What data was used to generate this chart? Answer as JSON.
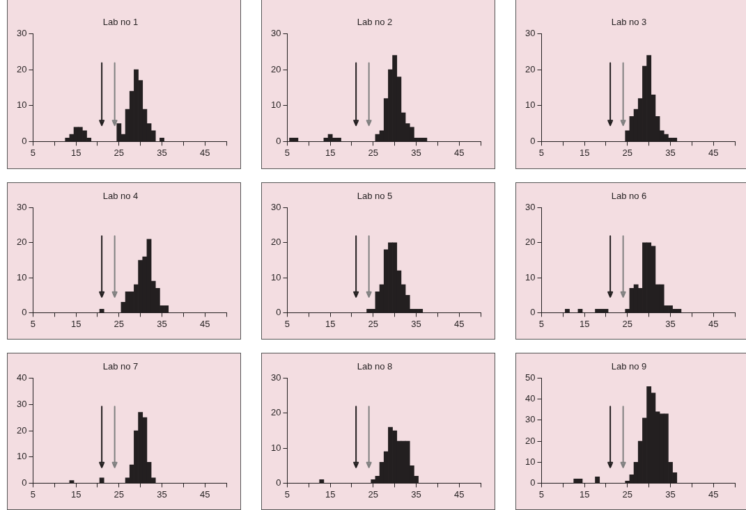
{
  "chart_data": [
    {
      "type": "histogram",
      "title": "Lab no 1",
      "color": "#231f20",
      "bins": [
        5.5,
        6.5,
        7.5,
        8.5,
        9.5,
        10.5,
        11.5,
        12.5,
        13.5,
        14.5,
        15.5,
        16.5,
        17.5,
        18.5,
        19.5,
        20.5,
        21.5,
        22.5,
        23.5,
        24.5,
        25.5,
        26.5,
        27.5,
        28.5,
        29.5,
        30.5,
        31.5,
        32.5,
        33.5,
        34.5,
        35.5,
        36.5,
        37.5,
        38.5
      ],
      "values": [
        0,
        0,
        0,
        0,
        0,
        0,
        0,
        1,
        2,
        4,
        4,
        3,
        1,
        0,
        0,
        0,
        0,
        0,
        0,
        5,
        2,
        9,
        14,
        20,
        17,
        9,
        5,
        3,
        0,
        1,
        0,
        0,
        0
      ],
      "xlim": [
        5,
        50
      ],
      "xticks": [
        5,
        {
          "value": 10,
          "label": null
        },
        15,
        {
          "value": 20,
          "label": null
        },
        25,
        {
          "value": 30,
          "label": null
        },
        35,
        {
          "value": 40,
          "label": null
        },
        45,
        {
          "value": 50,
          "label": null
        }
      ],
      "ylim": [
        0,
        30
      ],
      "yticks": [
        0,
        10,
        20,
        30
      ],
      "ref_lines": [
        {
          "axis": "x",
          "value": 21,
          "color": "#231f20"
        },
        {
          "axis": "x",
          "value": 24,
          "color": "#808080"
        }
      ]
    },
    {
      "type": "histogram",
      "title": "Lab no 2",
      "color": "#231f20",
      "bins": [
        5.5,
        6.5,
        7.5,
        8.5,
        9.5,
        10.5,
        11.5,
        12.5,
        13.5,
        14.5,
        15.5,
        16.5,
        17.5,
        18.5,
        19.5,
        20.5,
        21.5,
        22.5,
        23.5,
        24.5,
        25.5,
        26.5,
        27.5,
        28.5,
        29.5,
        30.5,
        31.5,
        32.5,
        33.5,
        34.5,
        35.5,
        36.5,
        37.5,
        38.5
      ],
      "values": [
        1,
        1,
        0,
        0,
        0,
        0,
        0,
        0,
        1,
        2,
        1,
        1,
        0,
        0,
        0,
        0,
        0,
        0,
        0,
        0,
        2,
        3,
        12,
        20,
        24,
        18,
        8,
        5,
        4,
        1,
        1,
        1,
        0
      ],
      "xlim": [
        5,
        50
      ],
      "xticks": [
        5,
        {
          "value": 10,
          "label": null
        },
        15,
        {
          "value": 20,
          "label": null
        },
        25,
        {
          "value": 30,
          "label": null
        },
        35,
        {
          "value": 40,
          "label": null
        },
        45,
        {
          "value": 50,
          "label": null
        }
      ],
      "ylim": [
        0,
        30
      ],
      "yticks": [
        0,
        10,
        20,
        30
      ],
      "ref_lines": [
        {
          "axis": "x",
          "value": 21,
          "color": "#231f20"
        },
        {
          "axis": "x",
          "value": 24,
          "color": "#808080"
        }
      ]
    },
    {
      "type": "histogram",
      "title": "Lab no 3",
      "color": "#231f20",
      "bins": [
        5.5,
        6.5,
        7.5,
        8.5,
        9.5,
        10.5,
        11.5,
        12.5,
        13.5,
        14.5,
        15.5,
        16.5,
        17.5,
        18.5,
        19.5,
        20.5,
        21.5,
        22.5,
        23.5,
        24.5,
        25.5,
        26.5,
        27.5,
        28.5,
        29.5,
        30.5,
        31.5,
        32.5,
        33.5,
        34.5,
        35.5,
        36.5,
        37.5,
        38.5
      ],
      "values": [
        0,
        0,
        0,
        0,
        0,
        0,
        0,
        0,
        0,
        0,
        0,
        0,
        0,
        0,
        0,
        0,
        0,
        0,
        0,
        3,
        7,
        9,
        12,
        21,
        24,
        13,
        7,
        3,
        2,
        1,
        1,
        0,
        0
      ],
      "xlim": [
        5,
        50
      ],
      "xticks": [
        5,
        {
          "value": 10,
          "label": null
        },
        15,
        {
          "value": 20,
          "label": null
        },
        25,
        {
          "value": 30,
          "label": null
        },
        35,
        {
          "value": 40,
          "label": null
        },
        45,
        {
          "value": 50,
          "label": null
        }
      ],
      "ylim": [
        0,
        30
      ],
      "yticks": [
        0,
        10,
        20,
        30
      ],
      "ref_lines": [
        {
          "axis": "x",
          "value": 21,
          "color": "#231f20"
        },
        {
          "axis": "x",
          "value": 24,
          "color": "#808080"
        }
      ]
    },
    {
      "type": "histogram",
      "title": "Lab no 4",
      "color": "#231f20",
      "bins": [
        5.5,
        6.5,
        7.5,
        8.5,
        9.5,
        10.5,
        11.5,
        12.5,
        13.5,
        14.5,
        15.5,
        16.5,
        17.5,
        18.5,
        19.5,
        20.5,
        21.5,
        22.5,
        23.5,
        24.5,
        25.5,
        26.5,
        27.5,
        28.5,
        29.5,
        30.5,
        31.5,
        32.5,
        33.5,
        34.5,
        35.5,
        36.5,
        37.5,
        38.5
      ],
      "values": [
        0,
        0,
        0,
        0,
        0,
        0,
        0,
        0,
        0,
        0,
        0,
        0,
        0,
        0,
        0,
        1,
        0,
        0,
        0,
        0,
        3,
        6,
        6,
        8,
        15,
        16,
        21,
        9,
        7,
        2,
        2,
        0,
        0
      ],
      "xlim": [
        5,
        50
      ],
      "xticks": [
        5,
        {
          "value": 10,
          "label": null
        },
        15,
        {
          "value": 20,
          "label": null
        },
        25,
        {
          "value": 30,
          "label": null
        },
        35,
        {
          "value": 40,
          "label": null
        },
        45,
        {
          "value": 50,
          "label": null
        }
      ],
      "ylim": [
        0,
        30
      ],
      "yticks": [
        0,
        10,
        20,
        30
      ],
      "ref_lines": [
        {
          "axis": "x",
          "value": 21,
          "color": "#231f20"
        },
        {
          "axis": "x",
          "value": 24,
          "color": "#808080"
        }
      ]
    },
    {
      "type": "histogram",
      "title": "Lab no 5",
      "color": "#231f20",
      "bins": [
        5.5,
        6.5,
        7.5,
        8.5,
        9.5,
        10.5,
        11.5,
        12.5,
        13.5,
        14.5,
        15.5,
        16.5,
        17.5,
        18.5,
        19.5,
        20.5,
        21.5,
        22.5,
        23.5,
        24.5,
        25.5,
        26.5,
        27.5,
        28.5,
        29.5,
        30.5,
        31.5,
        32.5,
        33.5,
        34.5,
        35.5,
        36.5,
        37.5,
        38.5
      ],
      "values": [
        0,
        0,
        0,
        0,
        0,
        0,
        0,
        0,
        0,
        0,
        0,
        0,
        0,
        0,
        0,
        0,
        0,
        0,
        1,
        1,
        6,
        8,
        18,
        20,
        20,
        12,
        8,
        5,
        1,
        1,
        1,
        0,
        0
      ],
      "xlim": [
        5,
        50
      ],
      "xticks": [
        5,
        {
          "value": 10,
          "label": null
        },
        15,
        {
          "value": 20,
          "label": null
        },
        25,
        {
          "value": 30,
          "label": null
        },
        35,
        {
          "value": 40,
          "label": null
        },
        45,
        {
          "value": 50,
          "label": null
        }
      ],
      "ylim": [
        0,
        30
      ],
      "yticks": [
        0,
        10,
        20,
        30
      ],
      "ref_lines": [
        {
          "axis": "x",
          "value": 21,
          "color": "#231f20"
        },
        {
          "axis": "x",
          "value": 24,
          "color": "#808080"
        }
      ]
    },
    {
      "type": "histogram",
      "title": "Lab no 6",
      "color": "#231f20",
      "bins": [
        5.5,
        6.5,
        7.5,
        8.5,
        9.5,
        10.5,
        11.5,
        12.5,
        13.5,
        14.5,
        15.5,
        16.5,
        17.5,
        18.5,
        19.5,
        20.5,
        21.5,
        22.5,
        23.5,
        24.5,
        25.5,
        26.5,
        27.5,
        28.5,
        29.5,
        30.5,
        31.5,
        32.5,
        33.5,
        34.5,
        35.5,
        36.5,
        37.5,
        38.5
      ],
      "values": [
        0,
        0,
        0,
        0,
        0,
        1,
        0,
        0,
        1,
        0,
        0,
        0,
        1,
        1,
        1,
        0,
        0,
        0,
        0,
        1,
        7,
        8,
        7,
        20,
        20,
        19,
        8,
        8,
        2,
        2,
        1,
        1,
        0
      ],
      "xlim": [
        5,
        50
      ],
      "xticks": [
        5,
        {
          "value": 10,
          "label": null
        },
        15,
        {
          "value": 20,
          "label": null
        },
        25,
        {
          "value": 30,
          "label": null
        },
        35,
        {
          "value": 40,
          "label": null
        },
        45,
        {
          "value": 50,
          "label": null
        }
      ],
      "ylim": [
        0,
        30
      ],
      "yticks": [
        0,
        10,
        20,
        30
      ],
      "ref_lines": [
        {
          "axis": "x",
          "value": 21,
          "color": "#231f20"
        },
        {
          "axis": "x",
          "value": 24,
          "color": "#808080"
        }
      ]
    },
    {
      "type": "histogram",
      "title": "Lab no 7",
      "color": "#231f20",
      "bins": [
        5.5,
        6.5,
        7.5,
        8.5,
        9.5,
        10.5,
        11.5,
        12.5,
        13.5,
        14.5,
        15.5,
        16.5,
        17.5,
        18.5,
        19.5,
        20.5,
        21.5,
        22.5,
        23.5,
        24.5,
        25.5,
        26.5,
        27.5,
        28.5,
        29.5,
        30.5,
        31.5,
        32.5,
        33.5,
        34.5,
        35.5,
        36.5,
        37.5,
        38.5
      ],
      "values": [
        0,
        0,
        0,
        0,
        0,
        0,
        0,
        0,
        1,
        0,
        0,
        0,
        0,
        0,
        0,
        2,
        0,
        0,
        0,
        0,
        0,
        2,
        7,
        20,
        27,
        25,
        8,
        2,
        0,
        0,
        0,
        0,
        0
      ],
      "xlim": [
        5,
        50
      ],
      "xticks": [
        5,
        {
          "value": 10,
          "label": null
        },
        15,
        {
          "value": 20,
          "label": null
        },
        25,
        {
          "value": 30,
          "label": null
        },
        35,
        {
          "value": 40,
          "label": null
        },
        45,
        {
          "value": 50,
          "label": null
        }
      ],
      "ylim": [
        0,
        40
      ],
      "yticks": [
        0,
        10,
        20,
        30,
        40
      ],
      "ref_lines": [
        {
          "axis": "x",
          "value": 21,
          "color": "#231f20"
        },
        {
          "axis": "x",
          "value": 24,
          "color": "#808080"
        }
      ]
    },
    {
      "type": "histogram",
      "title": "Lab no 8",
      "color": "#231f20",
      "bins": [
        5.5,
        6.5,
        7.5,
        8.5,
        9.5,
        10.5,
        11.5,
        12.5,
        13.5,
        14.5,
        15.5,
        16.5,
        17.5,
        18.5,
        19.5,
        20.5,
        21.5,
        22.5,
        23.5,
        24.5,
        25.5,
        26.5,
        27.5,
        28.5,
        29.5,
        30.5,
        31.5,
        32.5,
        33.5,
        34.5,
        35.5,
        36.5,
        37.5,
        38.5
      ],
      "values": [
        0,
        0,
        0,
        0,
        0,
        0,
        0,
        1,
        0,
        0,
        0,
        0,
        0,
        0,
        0,
        0,
        0,
        0,
        0,
        1,
        2,
        6,
        9,
        16,
        15,
        12,
        12,
        12,
        5,
        2,
        0,
        0,
        0
      ],
      "xlim": [
        5,
        50
      ],
      "xticks": [
        5,
        {
          "value": 10,
          "label": null
        },
        15,
        {
          "value": 20,
          "label": null
        },
        25,
        {
          "value": 30,
          "label": null
        },
        35,
        {
          "value": 40,
          "label": null
        },
        45,
        {
          "value": 50,
          "label": null
        }
      ],
      "ylim": [
        0,
        30
      ],
      "yticks": [
        0,
        10,
        20,
        30
      ],
      "ref_lines": [
        {
          "axis": "x",
          "value": 21,
          "color": "#231f20"
        },
        {
          "axis": "x",
          "value": 24,
          "color": "#808080"
        }
      ]
    },
    {
      "type": "histogram",
      "title": "Lab no 9",
      "color": "#231f20",
      "bins": [
        5.5,
        6.5,
        7.5,
        8.5,
        9.5,
        10.5,
        11.5,
        12.5,
        13.5,
        14.5,
        15.5,
        16.5,
        17.5,
        18.5,
        19.5,
        20.5,
        21.5,
        22.5,
        23.5,
        24.5,
        25.5,
        26.5,
        27.5,
        28.5,
        29.5,
        30.5,
        31.5,
        32.5,
        33.5,
        34.5,
        35.5,
        36.5,
        37.5,
        38.5
      ],
      "values": [
        0,
        0,
        0,
        0,
        0,
        0,
        0,
        2,
        2,
        0,
        0,
        0,
        3,
        0,
        0,
        0,
        0,
        0,
        0,
        1,
        4,
        10,
        20,
        31,
        46,
        43,
        34,
        33,
        33,
        10,
        5,
        0,
        0
      ],
      "xlim": [
        5,
        50
      ],
      "xticks": [
        5,
        {
          "value": 10,
          "label": null
        },
        15,
        {
          "value": 20,
          "label": null
        },
        25,
        {
          "value": 30,
          "label": null
        },
        35,
        {
          "value": 40,
          "label": null
        },
        45,
        {
          "value": 50,
          "label": null
        }
      ],
      "ylim": [
        0,
        50
      ],
      "yticks": [
        0,
        10,
        20,
        30,
        40,
        50
      ],
      "ref_lines": [
        {
          "axis": "x",
          "value": 21,
          "color": "#231f20"
        },
        {
          "axis": "x",
          "value": 24,
          "color": "#808080"
        }
      ]
    }
  ]
}
